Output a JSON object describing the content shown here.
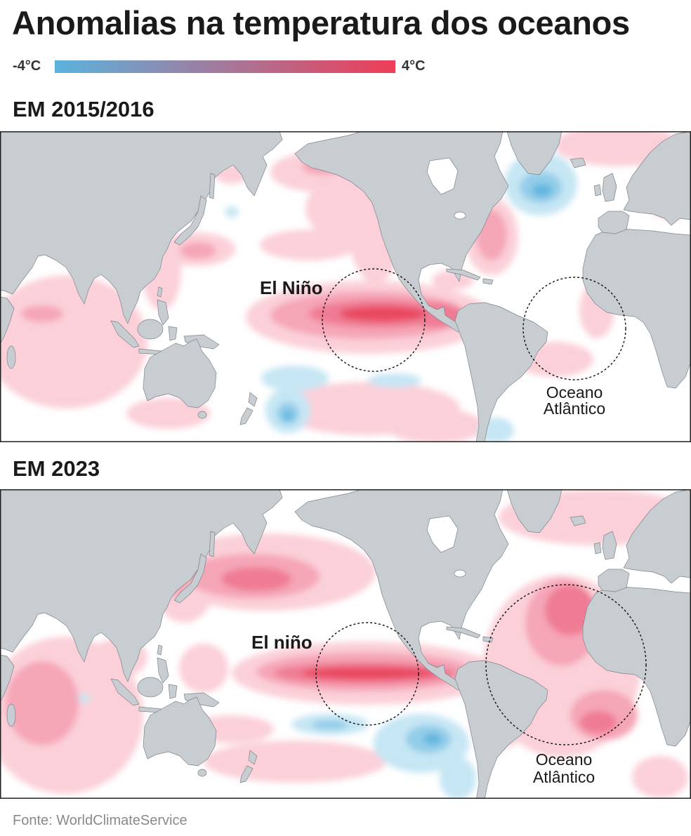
{
  "title": "Anomalias na temperatura dos oceanos",
  "legend": {
    "min_label": "-4°C",
    "max_label": "4°C",
    "cold_color": "#5ab3de",
    "warm_color": "#ef3d57"
  },
  "maps": [
    {
      "period": "EM 2015/2016",
      "el_nino_label": "El Niño",
      "atlantic_label_line1": "Oceano",
      "atlantic_label_line2": "Atlântico"
    },
    {
      "period": "EM 2023",
      "el_nino_label": "El niño",
      "atlantic_label_line1": "Oceano",
      "atlantic_label_line2": "Atlântico"
    }
  ],
  "colors": {
    "land": "#c8cdd2",
    "land_outline": "#7d848a",
    "ocean": "#ffffff",
    "warm_1": "#fbd0d9",
    "warm_2": "#f5a6b7",
    "warm_3": "#ef7c94",
    "warm_4": "#e8485f",
    "cold_1": "#c6e6f4",
    "cold_2": "#93cde9",
    "cold_3": "#62b5df",
    "circle_stroke": "#111111"
  },
  "source": "Fonte: WorldClimateService"
}
